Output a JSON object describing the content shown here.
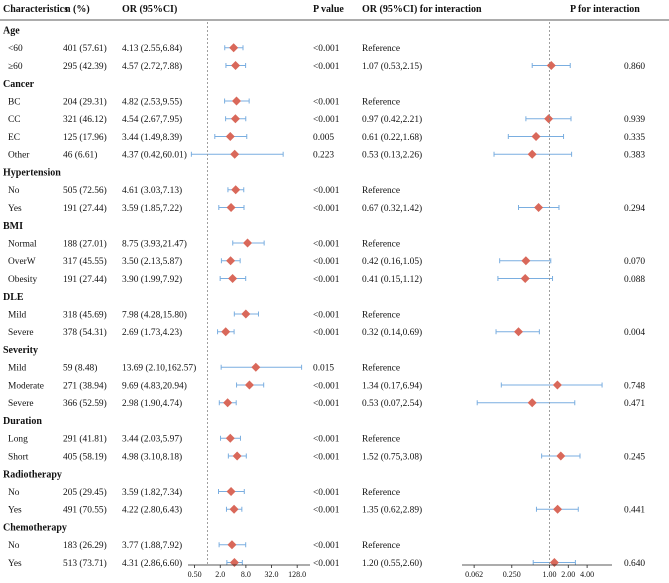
{
  "headers": {
    "characteristics": "Characteristics",
    "n": "n (%)",
    "or": "OR (95%CI)",
    "p": "P value",
    "or_inter": "OR (95%CI) for interaction",
    "p_inter": "P for interaction"
  },
  "colors": {
    "marker": "#d9685a",
    "ci_line": "#7aaee0",
    "ref_line": "#888888",
    "axis": "#222222"
  },
  "chart_data": [
    {
      "type": "forest",
      "name": "main",
      "scale": "log2",
      "xlim": [
        0.35,
        256
      ],
      "reference": 1,
      "ticks": [
        "0.50",
        "2.0",
        "8.0",
        "32.0",
        "128.0"
      ],
      "tick_values": [
        0.5,
        2,
        8,
        32,
        128
      ]
    },
    {
      "type": "forest",
      "name": "interaction",
      "scale": "log2",
      "xlim": [
        0.04,
        10
      ],
      "reference": 1,
      "ticks": [
        "0.062",
        "0.250",
        "1.00",
        "2.00",
        "4.00"
      ],
      "tick_values": [
        0.0625,
        0.25,
        1,
        2,
        4
      ]
    }
  ],
  "groups": [
    {
      "title": "Age",
      "rows": [
        {
          "label": "<60",
          "n": "401 (57.61)",
          "or_text": "4.13 (2.55,6.84)",
          "or": 4.13,
          "lo": 2.55,
          "hi": 6.84,
          "p": "<0.001",
          "ior_text": "Reference",
          "ior": null,
          "ilo": null,
          "ihi": null,
          "ip": ""
        },
        {
          "label": "≥60",
          "n": "295 (42.39)",
          "or_text": "4.57 (2.72,7.88)",
          "or": 4.57,
          "lo": 2.72,
          "hi": 7.88,
          "p": "<0.001",
          "ior_text": "1.07 (0.53,2.15)",
          "ior": 1.07,
          "ilo": 0.53,
          "ihi": 2.15,
          "ip": "0.860"
        }
      ]
    },
    {
      "title": "Cancer",
      "rows": [
        {
          "label": "BC",
          "n": "204 (29.31)",
          "or_text": "4.82 (2.53,9.55)",
          "or": 4.82,
          "lo": 2.53,
          "hi": 9.55,
          "p": "<0.001",
          "ior_text": "Reference",
          "ior": null,
          "ilo": null,
          "ihi": null,
          "ip": ""
        },
        {
          "label": "CC",
          "n": "321 (46.12)",
          "or_text": "4.54 (2.67,7.95)",
          "or": 4.54,
          "lo": 2.67,
          "hi": 7.95,
          "p": "<0.001",
          "ior_text": "0.97 (0.42,2.21)",
          "ior": 0.97,
          "ilo": 0.42,
          "ihi": 2.21,
          "ip": "0.939"
        },
        {
          "label": "EC",
          "n": "125 (17.96)",
          "or_text": "3.44 (1.49,8.39)",
          "or": 3.44,
          "lo": 1.49,
          "hi": 8.39,
          "p": "0.005",
          "ior_text": "0.61 (0.22,1.68)",
          "ior": 0.61,
          "ilo": 0.22,
          "ihi": 1.68,
          "ip": "0.335"
        },
        {
          "label": "Other",
          "n": "46 (6.61)",
          "or_text": "4.37 (0.42,60.01)",
          "or": 4.37,
          "lo": 0.42,
          "hi": 60.01,
          "p": "0.223",
          "ior_text": "0.53 (0.13,2.26)",
          "ior": 0.53,
          "ilo": 0.13,
          "ihi": 2.26,
          "ip": "0.383"
        }
      ]
    },
    {
      "title": "Hypertension",
      "rows": [
        {
          "label": "No",
          "n": "505 (72.56)",
          "or_text": "4.61 (3.03,7.13)",
          "or": 4.61,
          "lo": 3.03,
          "hi": 7.13,
          "p": "<0.001",
          "ior_text": "Reference",
          "ior": null,
          "ilo": null,
          "ihi": null,
          "ip": ""
        },
        {
          "label": "Yes",
          "n": "191 (27.44)",
          "or_text": "3.59 (1.85,7.22)",
          "or": 3.59,
          "lo": 1.85,
          "hi": 7.22,
          "p": "<0.001",
          "ior_text": "0.67 (0.32,1.42)",
          "ior": 0.67,
          "ilo": 0.32,
          "ihi": 1.42,
          "ip": "0.294"
        }
      ]
    },
    {
      "title": "BMI",
      "rows": [
        {
          "label": "Normal",
          "n": "188 (27.01)",
          "or_text": "8.75 (3.93,21.47)",
          "or": 8.75,
          "lo": 3.93,
          "hi": 21.47,
          "p": "<0.001",
          "ior_text": "Reference",
          "ior": null,
          "ilo": null,
          "ihi": null,
          "ip": ""
        },
        {
          "label": "OverW",
          "n": "317 (45.55)",
          "or_text": "3.50 (2.13,5.87)",
          "or": 3.5,
          "lo": 2.13,
          "hi": 5.87,
          "p": "<0.001",
          "ior_text": "0.42 (0.16,1.05)",
          "ior": 0.42,
          "ilo": 0.16,
          "ihi": 1.05,
          "ip": "0.070"
        },
        {
          "label": "Obesity",
          "n": "191 (27.44)",
          "or_text": "3.90 (1.99,7.92)",
          "or": 3.9,
          "lo": 1.99,
          "hi": 7.92,
          "p": "<0.001",
          "ior_text": "0.41 (0.15,1.12)",
          "ior": 0.41,
          "ilo": 0.15,
          "ihi": 1.12,
          "ip": "0.088"
        }
      ]
    },
    {
      "title": "DLE",
      "rows": [
        {
          "label": "Mild",
          "n": "318 (45.69)",
          "or_text": "7.98 (4.28,15.80)",
          "or": 7.98,
          "lo": 4.28,
          "hi": 15.8,
          "p": "<0.001",
          "ior_text": "Reference",
          "ior": null,
          "ilo": null,
          "ihi": null,
          "ip": ""
        },
        {
          "label": "Severe",
          "n": "378 (54.31)",
          "or_text": "2.69 (1.73,4.23)",
          "or": 2.69,
          "lo": 1.73,
          "hi": 4.23,
          "p": "<0.001",
          "ior_text": "0.32 (0.14,0.69)",
          "ior": 0.32,
          "ilo": 0.14,
          "ihi": 0.69,
          "ip": "0.004"
        }
      ]
    },
    {
      "title": "Severity",
      "rows": [
        {
          "label": "Mild",
          "n": "59 (8.48)",
          "or_text": "13.69 (2.10,162.57)",
          "or": 13.69,
          "lo": 2.1,
          "hi": 162.57,
          "p": "0.015",
          "ior_text": "Reference",
          "ior": null,
          "ilo": null,
          "ihi": null,
          "ip": ""
        },
        {
          "label": "Moderate",
          "n": "271 (38.94)",
          "or_text": "9.69 (4.83,20.94)",
          "or": 9.69,
          "lo": 4.83,
          "hi": 20.94,
          "p": "<0.001",
          "ior_text": "1.34 (0.17,6.94)",
          "ior": 1.34,
          "ilo": 0.17,
          "ihi": 6.94,
          "ip": "0.748"
        },
        {
          "label": "Severe",
          "n": "366 (52.59)",
          "or_text": "2.98 (1.90,4.74)",
          "or": 2.98,
          "lo": 1.9,
          "hi": 4.74,
          "p": "<0.001",
          "ior_text": "0.53 (0.07,2.54)",
          "ior": 0.53,
          "ilo": 0.07,
          "ihi": 2.54,
          "ip": "0.471"
        }
      ]
    },
    {
      "title": "Duration",
      "rows": [
        {
          "label": "Long",
          "n": "291 (41.81)",
          "or_text": "3.44 (2.03,5.97)",
          "or": 3.44,
          "lo": 2.03,
          "hi": 5.97,
          "p": "<0.001",
          "ior_text": "Reference",
          "ior": null,
          "ilo": null,
          "ihi": null,
          "ip": ""
        },
        {
          "label": "Short",
          "n": "405 (58.19)",
          "or_text": "4.98 (3.10,8.18)",
          "or": 4.98,
          "lo": 3.1,
          "hi": 8.18,
          "p": "<0.001",
          "ior_text": "1.52 (0.75,3.08)",
          "ior": 1.52,
          "ilo": 0.75,
          "ihi": 3.08,
          "ip": "0.245"
        }
      ]
    },
    {
      "title": "Radiotherapy",
      "rows": [
        {
          "label": "No",
          "n": "205 (29.45)",
          "or_text": "3.59 (1.82,7.34)",
          "or": 3.59,
          "lo": 1.82,
          "hi": 7.34,
          "p": "<0.001",
          "ior_text": "Reference",
          "ior": null,
          "ilo": null,
          "ihi": null,
          "ip": ""
        },
        {
          "label": "Yes",
          "n": "491 (70.55)",
          "or_text": "4.22 (2.80,6.43)",
          "or": 4.22,
          "lo": 2.8,
          "hi": 6.43,
          "p": "<0.001",
          "ior_text": "1.35 (0.62,2.89)",
          "ior": 1.35,
          "ilo": 0.62,
          "ihi": 2.89,
          "ip": "0.441"
        }
      ]
    },
    {
      "title": "Chemotherapy",
      "rows": [
        {
          "label": "No",
          "n": "183 (26.29)",
          "or_text": "3.77 (1.88,7.92)",
          "or": 3.77,
          "lo": 1.88,
          "hi": 7.92,
          "p": "<0.001",
          "ior_text": "Reference",
          "ior": null,
          "ilo": null,
          "ihi": null,
          "ip": ""
        },
        {
          "label": "Yes",
          "n": "513 (73.71)",
          "or_text": "4.31 (2.86,6.60)",
          "or": 4.31,
          "lo": 2.86,
          "hi": 6.6,
          "p": "<0.001",
          "ior_text": "1.20 (0.55,2.60)",
          "ior": 1.2,
          "ilo": 0.55,
          "ihi": 2.6,
          "ip": "0.640"
        }
      ]
    }
  ]
}
